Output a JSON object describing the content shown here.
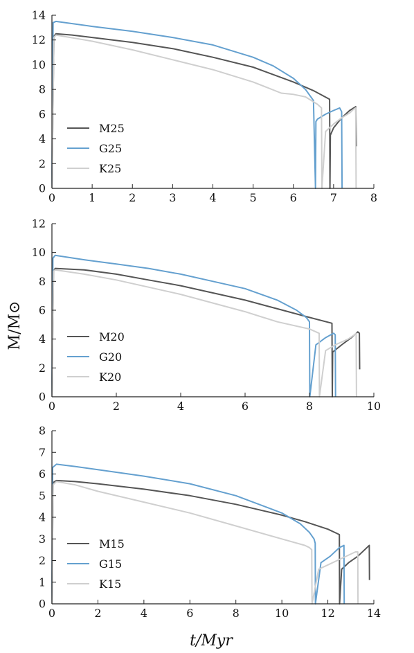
{
  "ylabel": "M/M⊙",
  "xlabel": "t/Myr",
  "colors": {
    "M": "#555555",
    "G": "#64a0cf",
    "K": "#cfcfcf"
  },
  "chart_data": [
    {
      "type": "line",
      "xlim": [
        0,
        8
      ],
      "ylim": [
        0,
        14
      ],
      "xticks": [
        "0",
        "1",
        "2",
        "3",
        "4",
        "5",
        "6",
        "7",
        "8"
      ],
      "yticks": [
        "0",
        "2",
        "4",
        "6",
        "8",
        "10",
        "12",
        "14"
      ],
      "legend_position": "lower-left",
      "series": [
        {
          "name": "M25",
          "color": "#555555",
          "x": [
            0,
            0.05,
            0.1,
            0.5,
            1,
            2,
            3,
            4,
            5,
            6,
            6.5,
            6.9,
            6.91,
            6.92,
            7.0,
            7.2,
            7.4,
            7.55,
            7.57
          ],
          "y": [
            0,
            12.3,
            12.5,
            12.4,
            12.2,
            11.8,
            11.3,
            10.6,
            9.8,
            8.6,
            7.9,
            7.2,
            0,
            4.3,
            4.9,
            5.7,
            6.3,
            6.6,
            3.4
          ]
        },
        {
          "name": "G25",
          "color": "#64a0cf",
          "x": [
            0,
            0.03,
            0.1,
            1,
            2,
            3,
            4,
            5,
            5.5,
            6,
            6.3,
            6.5,
            6.55,
            6.56,
            6.6,
            6.8,
            7.0,
            7.15,
            7.2,
            7.21
          ],
          "y": [
            0,
            13.4,
            13.5,
            13.1,
            12.7,
            12.2,
            11.6,
            10.6,
            9.9,
            8.9,
            8.0,
            7.1,
            0,
            5.4,
            5.6,
            6.0,
            6.3,
            6.5,
            6.2,
            0
          ]
        },
        {
          "name": "K25",
          "color": "#cfcfcf",
          "x": [
            0,
            0.05,
            0.1,
            1,
            2,
            3,
            4,
            5,
            5.7,
            6.0,
            6.3,
            6.5,
            6.6,
            6.7,
            6.71,
            6.8,
            7.0,
            7.2,
            7.4,
            7.5,
            7.55,
            7.56
          ],
          "y": [
            0,
            12.2,
            12.4,
            11.9,
            11.2,
            10.4,
            9.6,
            8.6,
            7.7,
            7.6,
            7.4,
            7.0,
            6.8,
            6.5,
            0,
            4.6,
            5.2,
            5.7,
            6.1,
            6.4,
            6.5,
            0
          ]
        }
      ]
    },
    {
      "type": "line",
      "xlim": [
        0,
        10
      ],
      "ylim": [
        0,
        12
      ],
      "xticks": [
        "0",
        "2",
        "4",
        "6",
        "8",
        "10"
      ],
      "yticks": [
        "0",
        "2",
        "4",
        "6",
        "8",
        "10",
        "12"
      ],
      "legend_position": "lower-left",
      "series": [
        {
          "name": "M20",
          "color": "#555555",
          "x": [
            0,
            0.05,
            0.1,
            1,
            2,
            3,
            4,
            5,
            6,
            7,
            8,
            8.7,
            8.71,
            8.72,
            9.0,
            9.3,
            9.5,
            9.55,
            9.56
          ],
          "y": [
            0,
            8.7,
            8.9,
            8.8,
            8.5,
            8.1,
            7.7,
            7.2,
            6.7,
            6.1,
            5.5,
            5.1,
            0,
            3.1,
            3.6,
            4.1,
            4.5,
            4.4,
            1.9
          ]
        },
        {
          "name": "G20",
          "color": "#64a0cf",
          "x": [
            0,
            0.03,
            0.1,
            1,
            2,
            3,
            4,
            5,
            6,
            7,
            7.6,
            7.9,
            8.0,
            8.01,
            8.2,
            8.5,
            8.75,
            8.8,
            8.81
          ],
          "y": [
            0,
            9.6,
            9.8,
            9.5,
            9.2,
            8.9,
            8.5,
            8.0,
            7.5,
            6.7,
            6.0,
            5.5,
            5.2,
            0,
            3.6,
            4.1,
            4.4,
            4.3,
            0
          ]
        },
        {
          "name": "K20",
          "color": "#cfcfcf",
          "x": [
            0,
            0.05,
            0.1,
            1,
            2,
            3,
            4,
            5,
            6,
            7,
            8.0,
            8.3,
            8.31,
            8.5,
            8.8,
            9.2,
            9.4,
            9.45,
            9.46
          ],
          "y": [
            0,
            8.7,
            8.8,
            8.5,
            8.1,
            7.6,
            7.1,
            6.5,
            5.9,
            5.2,
            4.7,
            4.4,
            0,
            3.2,
            3.6,
            4.0,
            4.3,
            4.4,
            0
          ]
        }
      ]
    },
    {
      "type": "line",
      "xlim": [
        0,
        14
      ],
      "ylim": [
        0,
        8
      ],
      "xticks": [
        "0",
        "2",
        "4",
        "6",
        "8",
        "10",
        "12",
        "14"
      ],
      "yticks": [
        "0",
        "1",
        "2",
        "3",
        "4",
        "5",
        "6",
        "7",
        "8"
      ],
      "legend_position": "lower-left",
      "series": [
        {
          "name": "M15",
          "color": "#555555",
          "x": [
            0,
            0.05,
            0.2,
            1,
            2,
            4,
            6,
            8,
            10,
            11,
            12,
            12.5,
            12.51,
            12.6,
            12.9,
            13.3,
            13.7,
            13.8,
            13.81
          ],
          "y": [
            0,
            5.6,
            5.7,
            5.65,
            5.55,
            5.3,
            5.0,
            4.6,
            4.1,
            3.8,
            3.45,
            3.2,
            0,
            1.6,
            1.9,
            2.2,
            2.6,
            2.7,
            1.1
          ]
        },
        {
          "name": "G15",
          "color": "#64a0cf",
          "x": [
            0,
            0.03,
            0.2,
            1,
            2,
            4,
            6,
            8,
            10,
            10.8,
            11.2,
            11.4,
            11.45,
            11.46,
            11.7,
            12.1,
            12.5,
            12.7,
            12.71
          ],
          "y": [
            0,
            6.3,
            6.45,
            6.35,
            6.2,
            5.9,
            5.55,
            5.0,
            4.2,
            3.7,
            3.3,
            3.0,
            2.8,
            0,
            1.9,
            2.2,
            2.6,
            2.7,
            0
          ]
        },
        {
          "name": "K15",
          "color": "#cfcfcf",
          "x": [
            0,
            0.05,
            0.2,
            1,
            2,
            4,
            6,
            8,
            10,
            11,
            11.2,
            11.3,
            11.31,
            11.6,
            12.0,
            12.6,
            13.2,
            13.3,
            13.31
          ],
          "y": [
            0,
            5.5,
            5.65,
            5.5,
            5.2,
            4.7,
            4.2,
            3.6,
            3.0,
            2.7,
            2.6,
            2.5,
            0,
            1.6,
            1.8,
            2.1,
            2.4,
            2.4,
            0
          ]
        }
      ]
    }
  ]
}
